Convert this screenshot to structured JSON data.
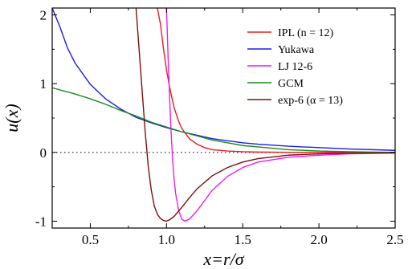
{
  "chart_data": {
    "type": "line",
    "title": "",
    "xlabel": "x=r/σ",
    "ylabel": "u(x)",
    "xlim": [
      0.25,
      2.5
    ],
    "ylim": [
      -1.1,
      2.1
    ],
    "xticks": [
      0.5,
      1.0,
      1.5,
      2.0,
      2.5
    ],
    "xtick_labels": [
      "0.5",
      "1.0",
      "1.5",
      "2.0",
      "2.5"
    ],
    "yticks": [
      -1,
      0,
      1,
      2
    ],
    "ytick_labels": [
      "-1",
      "0",
      "1",
      "2"
    ],
    "grid": false,
    "legend_position": "top-right",
    "reference_line": {
      "y": 0,
      "style": "dotted"
    },
    "series": [
      {
        "name": "IPL (n = 12)",
        "color": "#ee1c1c",
        "x": [
          0.94,
          0.96,
          0.98,
          1.0,
          1.02,
          1.05,
          1.08,
          1.1,
          1.15,
          1.2,
          1.25,
          1.3,
          1.4,
          1.5,
          1.6,
          1.8,
          2.0,
          2.2,
          2.5
        ],
        "y": [
          2.1,
          1.87,
          1.51,
          1.2,
          0.95,
          0.65,
          0.45,
          0.35,
          0.2,
          0.12,
          0.07,
          0.04,
          0.02,
          0.01,
          0.005,
          0.002,
          0.001,
          0.0,
          0.0
        ]
      },
      {
        "name": "Yukawa",
        "color": "#1c1ce6",
        "x": [
          0.25,
          0.3,
          0.35,
          0.4,
          0.5,
          0.6,
          0.7,
          0.8,
          0.9,
          1.0,
          1.1,
          1.2,
          1.3,
          1.4,
          1.5,
          1.6,
          1.8,
          2.0,
          2.2,
          2.5
        ],
        "y": [
          2.1,
          1.83,
          1.52,
          1.3,
          0.99,
          0.78,
          0.63,
          0.51,
          0.43,
          0.36,
          0.3,
          0.25,
          0.2,
          0.17,
          0.14,
          0.12,
          0.09,
          0.07,
          0.05,
          0.03
        ]
      },
      {
        "name": "LJ 12-6",
        "color": "#ee1cee",
        "x": [
          1.0,
          1.01,
          1.02,
          1.03,
          1.04,
          1.05,
          1.06,
          1.08,
          1.1,
          1.12,
          1.15,
          1.2,
          1.25,
          1.3,
          1.4,
          1.5,
          1.6,
          1.8,
          2.0,
          2.2,
          2.5
        ],
        "y": [
          2.1,
          1.4,
          0.8,
          0.3,
          -0.1,
          -0.4,
          -0.6,
          -0.85,
          -0.97,
          -1.0,
          -0.97,
          -0.85,
          -0.7,
          -0.55,
          -0.35,
          -0.22,
          -0.14,
          -0.07,
          -0.04,
          -0.02,
          -0.01
        ]
      },
      {
        "name": "GCM",
        "color": "#1c8c1c",
        "x": [
          0.25,
          0.3,
          0.4,
          0.5,
          0.6,
          0.7,
          0.8,
          0.9,
          1.0,
          1.1,
          1.2,
          1.3,
          1.4,
          1.5,
          1.6,
          1.8,
          2.0,
          2.2,
          2.5
        ],
        "y": [
          0.94,
          0.91,
          0.85,
          0.78,
          0.7,
          0.61,
          0.53,
          0.44,
          0.37,
          0.3,
          0.24,
          0.18,
          0.14,
          0.1,
          0.08,
          0.04,
          0.02,
          0.01,
          0.0
        ]
      },
      {
        "name": "exp-6 (α = 13)",
        "color": "#7a1010",
        "x": [
          0.8,
          0.82,
          0.84,
          0.86,
          0.88,
          0.9,
          0.92,
          0.94,
          0.96,
          0.98,
          1.0,
          1.02,
          1.05,
          1.1,
          1.15,
          1.2,
          1.3,
          1.4,
          1.5,
          1.6,
          1.8,
          2.0,
          2.2,
          2.5
        ],
        "y": [
          2.1,
          1.5,
          0.9,
          0.3,
          -0.2,
          -0.55,
          -0.78,
          -0.9,
          -0.96,
          -0.99,
          -1.0,
          -0.98,
          -0.93,
          -0.8,
          -0.66,
          -0.53,
          -0.34,
          -0.22,
          -0.14,
          -0.09,
          -0.04,
          -0.02,
          -0.01,
          -0.005
        ]
      }
    ]
  }
}
